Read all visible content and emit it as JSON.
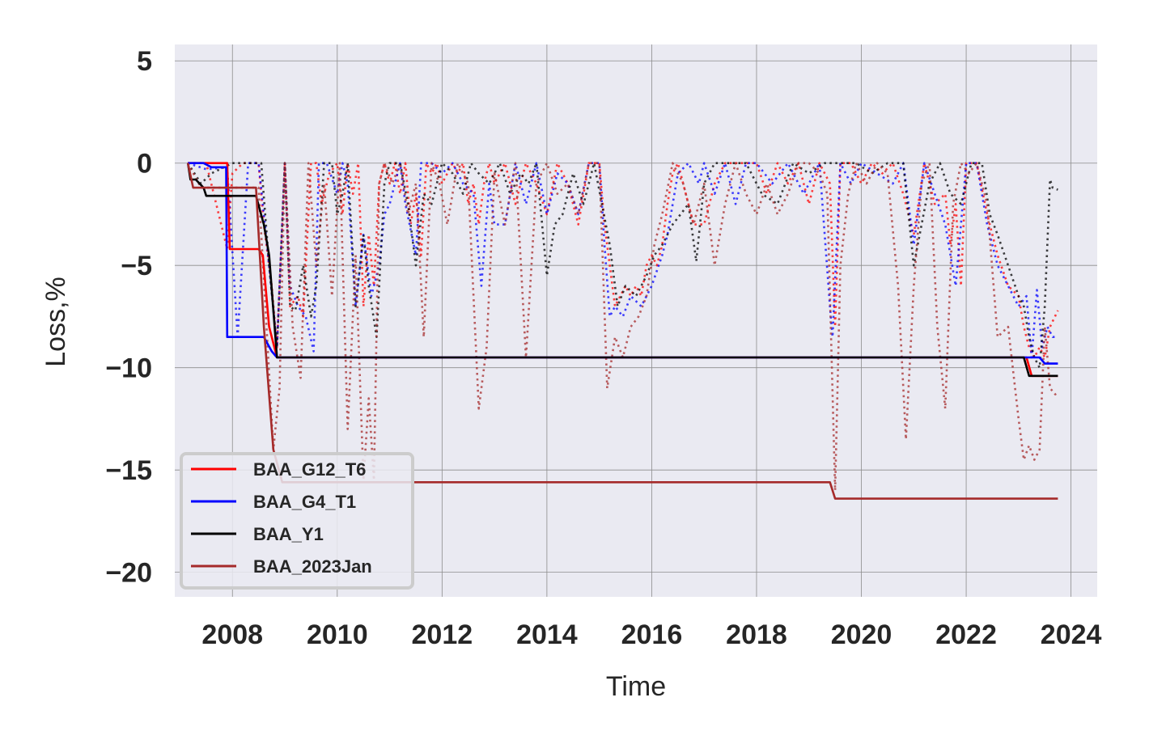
{
  "chart_data": {
    "type": "line",
    "xlabel": "Time",
    "ylabel": "Loss,%",
    "xlim": [
      2006.9,
      2024.5
    ],
    "ylim": [
      -21.2,
      5.8
    ],
    "x_ticks": [
      2008,
      2010,
      2012,
      2014,
      2016,
      2018,
      2020,
      2022,
      2024
    ],
    "y_ticks": [
      5,
      0,
      -5,
      -10,
      -15,
      -20
    ],
    "y_tick_labels": [
      "5",
      "0",
      "−5",
      "−10",
      "−15",
      "−20"
    ],
    "grid": true,
    "legend_position": "lower-left",
    "series": [
      {
        "name": "BAA_G12_T6",
        "color": "#ff0000",
        "style": "solid",
        "x": [
          2007.15,
          2007.9,
          2007.95,
          2008.5,
          2008.58,
          2008.7,
          2008.85,
          2023.15,
          2023.25,
          2023.75
        ],
        "y": [
          0,
          0,
          -4.2,
          -4.2,
          -4.5,
          -8.0,
          -9.5,
          -9.5,
          -10.4,
          -10.4
        ]
      },
      {
        "name": "BAA_G4_T1",
        "color": "#0000ff",
        "style": "solid",
        "x": [
          2007.15,
          2007.45,
          2007.6,
          2007.75,
          2007.88,
          2007.9,
          2008.6,
          2008.75,
          2008.85,
          2023.4,
          2023.5,
          2023.75
        ],
        "y": [
          0,
          0,
          -0.2,
          -0.2,
          -0.2,
          -8.5,
          -8.5,
          -9.2,
          -9.5,
          -9.5,
          -9.8,
          -9.8
        ]
      },
      {
        "name": "BAA_Y1",
        "color": "#000000",
        "style": "solid",
        "x": [
          2007.15,
          2007.2,
          2007.3,
          2007.45,
          2007.5,
          2008.45,
          2008.6,
          2008.7,
          2008.85,
          2023.1,
          2023.2,
          2023.75
        ],
        "y": [
          0,
          -0.8,
          -0.8,
          -1.2,
          -1.6,
          -1.6,
          -3.0,
          -4.5,
          -9.5,
          -9.5,
          -10.4,
          -10.4
        ]
      },
      {
        "name": "BAA_2023Jan",
        "color": "#a52a2a",
        "style": "solid",
        "x": [
          2007.15,
          2007.25,
          2008.45,
          2008.6,
          2008.78,
          2008.95,
          2019.4,
          2019.5,
          2023.75
        ],
        "y": [
          0,
          -1.2,
          -1.2,
          -8.0,
          -14.0,
          -15.6,
          -15.6,
          -16.4,
          -16.4
        ]
      },
      {
        "name": "",
        "color": "#ff0000",
        "style": "dotted",
        "x": [
          2007.15,
          2007.5,
          2007.9,
          2008.0,
          2008.2,
          2008.5,
          2008.6,
          2008.75,
          2008.85,
          2009.0,
          2009.1,
          2009.25,
          2009.35,
          2009.5,
          2009.6,
          2009.7,
          2009.85,
          2010.0,
          2010.1,
          2010.2,
          2010.3,
          2010.4,
          2010.5,
          2010.6,
          2010.7,
          2010.8,
          2010.9,
          2011.0,
          2011.1,
          2011.2,
          2011.3,
          2011.4,
          2011.5,
          2011.6,
          2011.7,
          2011.8,
          2011.9,
          2012.0,
          2012.1,
          2012.2,
          2012.3,
          2012.4,
          2012.5,
          2012.6,
          2012.7,
          2012.8,
          2012.9,
          2013.0,
          2013.2,
          2013.4,
          2013.6,
          2013.8,
          2014.0,
          2014.2,
          2014.4,
          2014.6,
          2014.8,
          2015.0,
          2015.1,
          2015.2,
          2015.3,
          2015.4,
          2015.5,
          2015.6,
          2015.7,
          2015.8,
          2015.9,
          2016.0,
          2016.1,
          2016.2,
          2016.3,
          2016.4,
          2016.5,
          2016.6,
          2016.8,
          2017.0,
          2017.2,
          2017.4,
          2017.6,
          2017.8,
          2018.0,
          2018.2,
          2018.4,
          2018.6,
          2018.8,
          2019.0,
          2019.2,
          2019.4,
          2019.5,
          2019.6,
          2019.8,
          2020.0,
          2020.2,
          2020.4,
          2020.6,
          2020.8,
          2021.0,
          2021.2,
          2021.4,
          2021.6,
          2021.7,
          2021.8,
          2021.9,
          2022.0,
          2022.2,
          2022.4,
          2022.6,
          2022.8,
          2023.0,
          2023.1,
          2023.2,
          2023.3,
          2023.4,
          2023.5,
          2023.6,
          2023.75
        ],
        "y": [
          0,
          0,
          -4.2,
          -0.5,
          0,
          0,
          -3.0,
          -6.0,
          -9.0,
          0,
          -7.0,
          -6.5,
          -7.5,
          0,
          0,
          -2.0,
          -0.5,
          0,
          -2.5,
          0,
          -1.5,
          0,
          -7.0,
          -3.5,
          -6.0,
          -1.0,
          0,
          -1.0,
          0,
          -1.5,
          0,
          -3.0,
          -1.5,
          -4.5,
          0,
          -0.5,
          0,
          -1.0,
          -0.5,
          0,
          -0.5,
          0,
          -2.0,
          -1.0,
          -3.0,
          -1.0,
          0,
          -1.0,
          0,
          -2.0,
          0,
          -1.0,
          -2.5,
          0,
          -1.0,
          -3.0,
          0,
          0,
          -3.0,
          -5.0,
          -7.0,
          -6.5,
          -6.0,
          -6.5,
          -6.0,
          -6.5,
          -5.0,
          -4.5,
          -5.0,
          -4.0,
          -2.0,
          -0.5,
          0,
          -1.0,
          -3.0,
          -3.0,
          -1.0,
          0,
          0,
          0,
          0,
          -1.5,
          0,
          -1.0,
          0,
          -2.0,
          0,
          -1.0,
          -8.0,
          0,
          0,
          -1.0,
          0,
          -0.5,
          0,
          -1.5,
          -3.5,
          0,
          -2.0,
          -1.5,
          -4.0,
          -2.0,
          -6.0,
          0,
          0,
          -2.5,
          -4.5,
          -6.0,
          -6.5,
          -8.0,
          -9.0,
          -9.5,
          -9.0,
          -9.5,
          -8.0,
          -7.2
        ]
      },
      {
        "name": "",
        "color": "#0000ff",
        "style": "dotted",
        "x": [
          2007.15,
          2007.5,
          2007.9,
          2008.1,
          2008.3,
          2008.5,
          2008.7,
          2008.85,
          2009.0,
          2009.1,
          2009.25,
          2009.4,
          2009.55,
          2009.65,
          2009.8,
          2010.0,
          2010.1,
          2010.2,
          2010.35,
          2010.5,
          2010.65,
          2010.8,
          2010.9,
          2011.0,
          2011.2,
          2011.3,
          2011.5,
          2011.6,
          2011.8,
          2012.0,
          2012.2,
          2012.4,
          2012.6,
          2012.75,
          2012.9,
          2013.0,
          2013.2,
          2013.4,
          2013.6,
          2013.8,
          2014.0,
          2014.2,
          2014.4,
          2014.6,
          2014.8,
          2015.0,
          2015.1,
          2015.2,
          2015.3,
          2015.45,
          2015.6,
          2015.8,
          2016.0,
          2016.2,
          2016.3,
          2016.5,
          2016.7,
          2016.9,
          2017.0,
          2017.2,
          2017.4,
          2017.6,
          2017.8,
          2018.0,
          2018.3,
          2018.6,
          2018.9,
          2019.2,
          2019.4,
          2019.45,
          2019.6,
          2019.8,
          2020.0,
          2020.3,
          2020.6,
          2020.8,
          2021.0,
          2021.2,
          2021.4,
          2021.6,
          2021.8,
          2022.0,
          2022.2,
          2022.4,
          2022.6,
          2022.8,
          2023.0,
          2023.15,
          2023.25,
          2023.35,
          2023.45,
          2023.55,
          2023.65,
          2023.75
        ],
        "y": [
          0,
          -0.3,
          -0.2,
          -8.5,
          0,
          0,
          -5.0,
          -9.0,
          0,
          -6.0,
          -7.0,
          -7.5,
          -9.2,
          0,
          0,
          -1.5,
          0,
          -1.0,
          -7.0,
          -3.5,
          -6.5,
          -5.0,
          -2.5,
          -2.0,
          0,
          -2.0,
          -4.5,
          0,
          0,
          -0.5,
          0,
          -1.0,
          -1.5,
          -6.0,
          -1.0,
          -3.0,
          -3.0,
          0,
          -2.0,
          0,
          -2.5,
          -0.5,
          -1.0,
          -2.5,
          0,
          0,
          -4.0,
          -7.5,
          -7.0,
          -7.5,
          -6.5,
          -7.0,
          -6.0,
          -4.5,
          -3.5,
          -0.5,
          0,
          -1.0,
          0,
          -1.5,
          0,
          -2.0,
          0,
          0,
          -1.0,
          0,
          -1.5,
          0,
          -7.0,
          -8.5,
          0,
          -1.0,
          0,
          -0.5,
          -1.0,
          0,
          -4.0,
          0,
          -1.5,
          -3.0,
          -6.0,
          0,
          0,
          -3.0,
          -5.0,
          -6.0,
          -7.0,
          -6.5,
          -9.5,
          -6.2,
          -9.0,
          -8.0,
          -8.5,
          -8.5
        ]
      },
      {
        "name": "",
        "color": "#000000",
        "style": "dotted",
        "x": [
          2007.15,
          2007.4,
          2007.6,
          2008.0,
          2008.3,
          2008.55,
          2008.7,
          2008.85,
          2009.0,
          2009.1,
          2009.2,
          2009.35,
          2009.5,
          2009.6,
          2009.75,
          2009.9,
          2010.0,
          2010.1,
          2010.2,
          2010.35,
          2010.5,
          2010.6,
          2010.75,
          2010.9,
          2011.0,
          2011.2,
          2011.35,
          2011.5,
          2011.65,
          2011.8,
          2012.0,
          2012.2,
          2012.4,
          2012.55,
          2012.7,
          2012.9,
          2013.1,
          2013.3,
          2013.5,
          2013.65,
          2013.8,
          2014.0,
          2014.15,
          2014.3,
          2014.5,
          2014.7,
          2014.9,
          2015.05,
          2015.2,
          2015.35,
          2015.5,
          2015.7,
          2015.9,
          2016.05,
          2016.2,
          2016.4,
          2016.55,
          2016.7,
          2016.85,
          2017.0,
          2017.2,
          2017.4,
          2017.6,
          2017.8,
          2018.1,
          2018.4,
          2018.7,
          2019.0,
          2019.3,
          2019.6,
          2019.9,
          2020.2,
          2020.5,
          2020.8,
          2021.0,
          2021.15,
          2021.3,
          2021.5,
          2021.7,
          2021.9,
          2022.1,
          2022.3,
          2022.45,
          2022.6,
          2022.8,
          2023.0,
          2023.1,
          2023.2,
          2023.3,
          2023.4,
          2023.5,
          2023.6,
          2023.65,
          2023.75
        ],
        "y": [
          0,
          -1.0,
          -0.5,
          0,
          0,
          0,
          -5.0,
          -9.0,
          0,
          -7.0,
          -7.2,
          -5.0,
          -7.5,
          -6.0,
          0,
          0,
          -2.5,
          -1.5,
          0,
          -7.0,
          -3.5,
          -6.0,
          -8.5,
          -1.0,
          0,
          0,
          -2.0,
          -5.0,
          -1.5,
          -2.0,
          0,
          -0.5,
          -1.5,
          0,
          -0.5,
          -1.0,
          0,
          -1.5,
          -0.5,
          -1.0,
          0,
          -5.5,
          -3.0,
          -2.5,
          -0.5,
          -2.0,
          0,
          -2.0,
          -4.0,
          -7.0,
          -6.0,
          -6.5,
          -5.5,
          -4.5,
          -4.0,
          -3.0,
          -2.5,
          -2.0,
          -4.8,
          -1.0,
          0,
          0,
          0,
          0,
          -1.5,
          -2.0,
          0,
          -0.5,
          0,
          0,
          0,
          -0.5,
          0,
          0,
          -5.0,
          -3.0,
          -1.0,
          0,
          -1.5,
          -2.0,
          0,
          0,
          -2.5,
          -3.5,
          -5.0,
          -6.5,
          -7.0,
          -8.5,
          -9.5,
          -10.0,
          -7.0,
          -0.8,
          -1.2,
          -1.3
        ]
      },
      {
        "name": "",
        "color": "#a52a2a",
        "style": "dotted",
        "x": [
          2007.15,
          2007.4,
          2008.5,
          2008.65,
          2008.78,
          2008.9,
          2009.0,
          2009.15,
          2009.3,
          2009.45,
          2009.6,
          2009.75,
          2009.9,
          2010.05,
          2010.2,
          2010.35,
          2010.5,
          2010.6,
          2010.7,
          2010.8,
          2010.9,
          2011.05,
          2011.2,
          2011.35,
          2011.5,
          2011.65,
          2011.8,
          2011.95,
          2012.1,
          2012.3,
          2012.5,
          2012.7,
          2012.85,
          2013.0,
          2013.2,
          2013.4,
          2013.6,
          2013.8,
          2014.0,
          2014.2,
          2014.4,
          2014.6,
          2014.8,
          2015.0,
          2015.15,
          2015.3,
          2015.45,
          2015.6,
          2015.75,
          2015.9,
          2016.05,
          2016.2,
          2016.4,
          2016.6,
          2016.8,
          2017.0,
          2017.2,
          2017.4,
          2017.6,
          2017.8,
          2018.0,
          2018.2,
          2018.4,
          2018.6,
          2018.8,
          2019.0,
          2019.2,
          2019.35,
          2019.5,
          2019.6,
          2019.75,
          2019.9,
          2020.1,
          2020.3,
          2020.5,
          2020.7,
          2020.85,
          2021.0,
          2021.15,
          2021.3,
          2021.45,
          2021.6,
          2021.75,
          2021.9,
          2022.05,
          2022.2,
          2022.4,
          2022.6,
          2022.8,
          2023.0,
          2023.1,
          2023.2,
          2023.3,
          2023.4,
          2023.5,
          2023.6,
          2023.7,
          2023.75
        ],
        "y": [
          0,
          -1.2,
          -1.2,
          -8.0,
          -14.0,
          -11.0,
          0,
          -8.0,
          -10.5,
          0,
          -5.0,
          -1.0,
          -6.5,
          0,
          -13.0,
          -4.5,
          -15.5,
          -11.5,
          -15.5,
          -1.0,
          0,
          -1.0,
          0,
          -2.5,
          -1.0,
          -8.5,
          0,
          -1.0,
          -3.0,
          0,
          -1.0,
          -12.0,
          -9.0,
          -0.5,
          -3.0,
          0,
          -9.5,
          -1.0,
          0,
          -1.5,
          -1.0,
          -2.5,
          0,
          0,
          -11.0,
          -8.5,
          -9.5,
          -8.0,
          -7.5,
          -6.5,
          -4.0,
          -2.5,
          0,
          -1.0,
          -3.0,
          -1.0,
          -5.0,
          -2.0,
          0,
          -1.5,
          -2.5,
          -1.0,
          -2.5,
          -1.5,
          0,
          0,
          -0.5,
          -1.5,
          -16.0,
          -5.0,
          -1.5,
          0,
          -1.0,
          0,
          -0.5,
          -6.0,
          -13.5,
          -6.0,
          -1.0,
          0,
          -8.0,
          -12.0,
          -2.0,
          0,
          -0.5,
          0,
          -2.0,
          -8.5,
          -8.0,
          -12.5,
          -14.5,
          -13.8,
          -14.5,
          -14.0,
          -8.0,
          -11.0,
          -11.3,
          -11.2
        ]
      }
    ]
  }
}
